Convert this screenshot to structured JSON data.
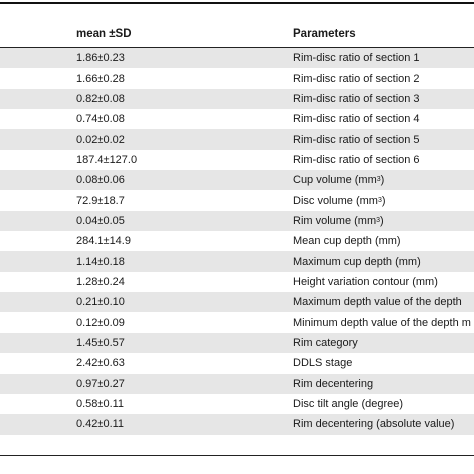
{
  "table": {
    "headers": {
      "mean": "mean ±SD",
      "parameters": "Parameters"
    },
    "rows": [
      {
        "mean": "1.86±0.23",
        "param": "Rim-disc ratio of section 1"
      },
      {
        "mean": "1.66±0.28",
        "param": "Rim-disc ratio of section 2"
      },
      {
        "mean": "0.82±0.08",
        "param": "Rim-disc ratio of section 3"
      },
      {
        "mean": "0.74±0.08",
        "param": "Rim-disc ratio of section 4"
      },
      {
        "mean": "0.02±0.02",
        "param": "Rim-disc ratio of section 5"
      },
      {
        "mean": "187.4±127.0",
        "param": "Rim-disc ratio of section 6"
      },
      {
        "mean": "0.08±0.06",
        "param": "Cup volume (mm",
        "sup": "3",
        "param_after": ")"
      },
      {
        "mean": "72.9±18.7",
        "param": "Disc volume (mm",
        "sup": "3",
        "param_after": ")"
      },
      {
        "mean": "0.04±0.05",
        "param": "Rim volume (mm",
        "sup": "3",
        "param_after": ")"
      },
      {
        "mean": "284.1±14.9",
        "param": "Mean cup depth (mm)"
      },
      {
        "mean": "1.14±0.18",
        "param": "Maximum cup depth (mm)"
      },
      {
        "mean": "1.28±0.24",
        "param": "Height variation contour (mm)"
      },
      {
        "mean": "0.21±0.10",
        "param": "Maximum depth value of the depth"
      },
      {
        "mean": "0.12±0.09",
        "param": "Minimum depth value of the depth m"
      },
      {
        "mean": "1.45±0.57",
        "param": "Rim category"
      },
      {
        "mean": "2.42±0.63",
        "param": "DDLS stage"
      },
      {
        "mean": "0.97±0.27",
        "param": "Rim decentering"
      },
      {
        "mean": "0.58±0.11",
        "param": "Disc tilt angle (degree)"
      },
      {
        "mean": "0.42±0.11",
        "param": "Rim decentering (absolute value)"
      }
    ]
  }
}
